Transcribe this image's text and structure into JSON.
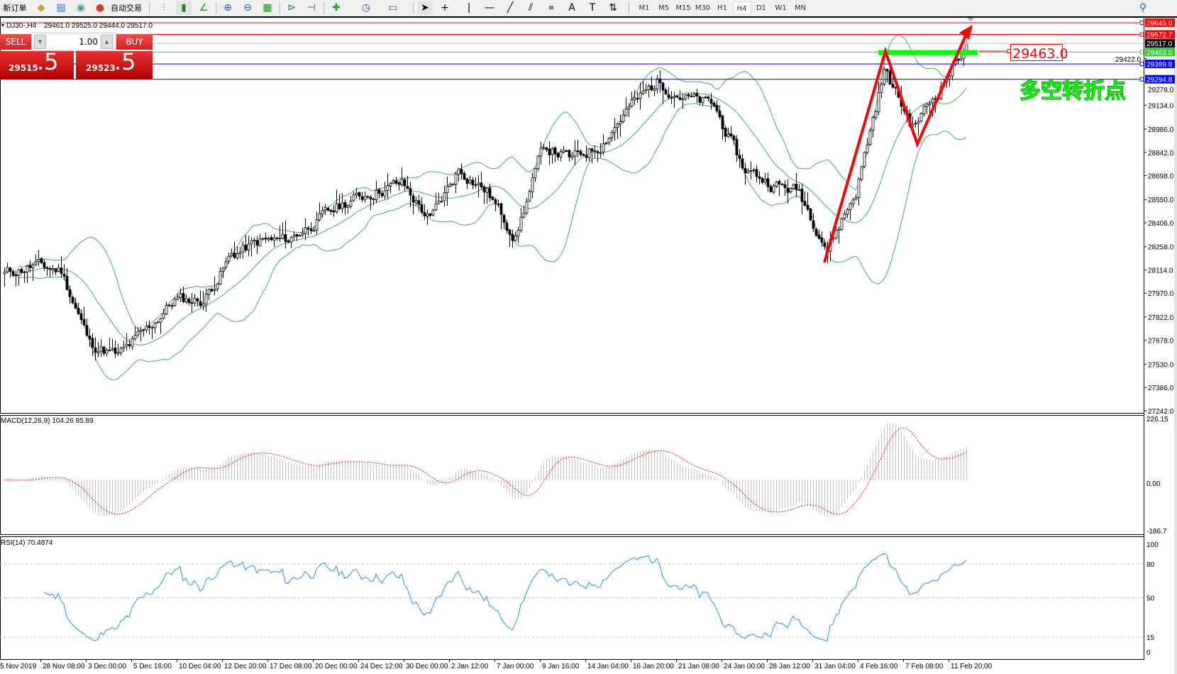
{
  "toolbar": {
    "new_order": "新订单",
    "auto_trading": "自动交易",
    "icons": [
      "market-watch-icon",
      "navigator-icon",
      "signals-icon",
      "auto-trading-icon",
      "bar-chart-icon",
      "candlestick-icon",
      "line-chart-icon",
      "zoom-in-icon",
      "zoom-out-icon",
      "tile-windows-icon",
      "auto-scroll-icon",
      "chart-shift-icon",
      "indicators-icon",
      "periods-icon",
      "templates-icon",
      "cursor-icon",
      "crosshair-icon",
      "vertical-line-icon",
      "horizontal-line-icon",
      "trendline-icon",
      "equidistant-channel-icon",
      "fibonacci-icon",
      "text-icon",
      "text-label-icon",
      "arrows-icon",
      "search-icon"
    ],
    "timeframes": [
      "M1",
      "M5",
      "M15",
      "M30",
      "H1",
      "H4",
      "D1",
      "W1",
      "MN"
    ],
    "active_timeframe": "H4"
  },
  "chart": {
    "symbol": "DJ30-,H4",
    "ohlc": "29461.0 29525.0 29444.0 29517.0"
  },
  "trade_panel": {
    "sell_label": "SELL",
    "buy_label": "BUY",
    "lot": "1.00",
    "sell_price_main": "29515",
    "sell_price_frac": ".5",
    "buy_price_main": "29523",
    "buy_price_frac": ".5"
  },
  "price_axis": [
    "29422.0",
    "29278.0",
    "29134.0",
    "28986.0",
    "28842.0",
    "28698.0",
    "28550.0",
    "28406.0",
    "28258.0",
    "28114.0",
    "27970.0",
    "27822.0",
    "27678.0",
    "27530.0",
    "27386.0",
    "27242.0"
  ],
  "levels": [
    {
      "value": "29645.0",
      "color": "#ff0000",
      "text_color": "#ffffff"
    },
    {
      "value": "29572.7",
      "color": "#ff0000",
      "text_color": "#ffffff"
    },
    {
      "value": "29517.0",
      "color": "#c0c0c0",
      "label_bg": "#000000",
      "text_color": "#ffffff"
    },
    {
      "value": "29463.0",
      "color": "#32cd32",
      "text_color": "#ffffff"
    },
    {
      "value": "29389.8",
      "color": "#0000ff",
      "text_color": "#ffffff"
    },
    {
      "value": "29294.8",
      "color": "#0000ff",
      "text_color": "#ffffff"
    }
  ],
  "annotation": {
    "price_label": "29463.0",
    "text": "多空转折点",
    "text_color": "#00ff00",
    "arrow_color": "#ff0000",
    "zone_color": "#00ff00"
  },
  "macd": {
    "label": "MACD(12,26,9) 104.26 85.89",
    "axis": [
      "226.15",
      "0.00",
      "-186.7"
    ]
  },
  "rsi": {
    "label": "RSI(14) 70.4874",
    "axis": [
      "100",
      "80",
      "50",
      "15",
      "0"
    ]
  },
  "time_axis": [
    "5 Nov 2019",
    "28 Nov 08:00",
    "3 Dec 00:00",
    "5 Dec 16:00",
    "10 Dec 04:00",
    "12 Dec 20:00",
    "17 Dec 08:00",
    "20 Dec 00:00",
    "24 Dec 12:00",
    "30 Dec 00:00",
    "2 Jan 12:00",
    "7 Jan 00:00",
    "9 Jan 16:00",
    "14 Jan 04:00",
    "16 Jan 20:00",
    "21 Jan 08:00",
    "24 Jan 00:00",
    "28 Jan 12:00",
    "31 Jan 04:00",
    "4 Feb 16:00",
    "7 Feb 08:00",
    "11 Feb 20:00"
  ],
  "colors": {
    "bands": "#3cb060",
    "macd_histogram": "#c0c0c0",
    "macd_signal": "#ff0000",
    "rsi_line": "#1e90ff",
    "trade_red": "#d02020"
  },
  "chart_data": {
    "type": "candlestick",
    "symbol": "DJ30-",
    "timeframe": "H4",
    "approx_close_path": [
      28090,
      28140,
      28110,
      27660,
      27580,
      27740,
      27930,
      27925,
      28205,
      28290,
      28300,
      28420,
      28530,
      28600,
      28650,
      28420,
      28740,
      28600,
      28320,
      28880,
      28800,
      28890,
      29120,
      29280,
      29180,
      29130,
      28750,
      28650,
      28600,
      28250,
      28600,
      29350,
      29000,
      29250,
      29517
    ],
    "last_bar": {
      "open": 29461.0,
      "high": 29525.0,
      "low": 29444.0,
      "close": 29517.0
    },
    "ylim": [
      27242,
      29645
    ],
    "indicators": [
      "MACD(12,26,9)",
      "RSI(14)"
    ]
  }
}
